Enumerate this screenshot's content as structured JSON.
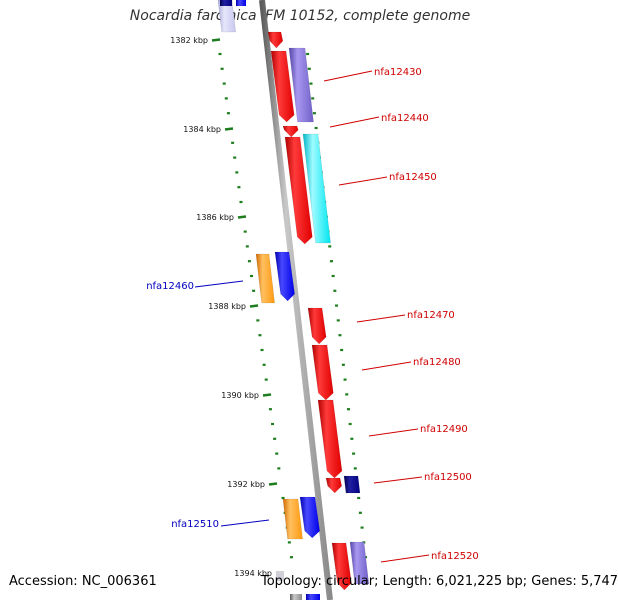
{
  "title": "Nocardia farcinica IFM 10152, complete genome",
  "footer": {
    "accession": "Accession: NC_006361",
    "summary": "Topology: circular; Length: 6,021,225 bp; Genes: 5,747"
  },
  "colors": {
    "backbone": "#8a8a8a",
    "tick": "#1e7d1e",
    "forward_label": "#d00000",
    "reverse_label": "#0000c0"
  },
  "ticks": [
    "1382 kbp",
    "1384 kbp",
    "1386 kbp",
    "1388 kbp",
    "1390 kbp",
    "1392 kbp",
    "1394 kbp"
  ],
  "genes": [
    {
      "label": "nfa12430",
      "strand": "forward"
    },
    {
      "label": "nfa12440",
      "strand": "forward"
    },
    {
      "label": "nfa12450",
      "strand": "forward"
    },
    {
      "label": "nfa12460",
      "strand": "reverse"
    },
    {
      "label": "nfa12470",
      "strand": "forward"
    },
    {
      "label": "nfa12480",
      "strand": "forward"
    },
    {
      "label": "nfa12490",
      "strand": "forward"
    },
    {
      "label": "nfa12500",
      "strand": "forward"
    },
    {
      "label": "nfa12510",
      "strand": "reverse"
    },
    {
      "label": "nfa12520",
      "strand": "forward"
    }
  ]
}
